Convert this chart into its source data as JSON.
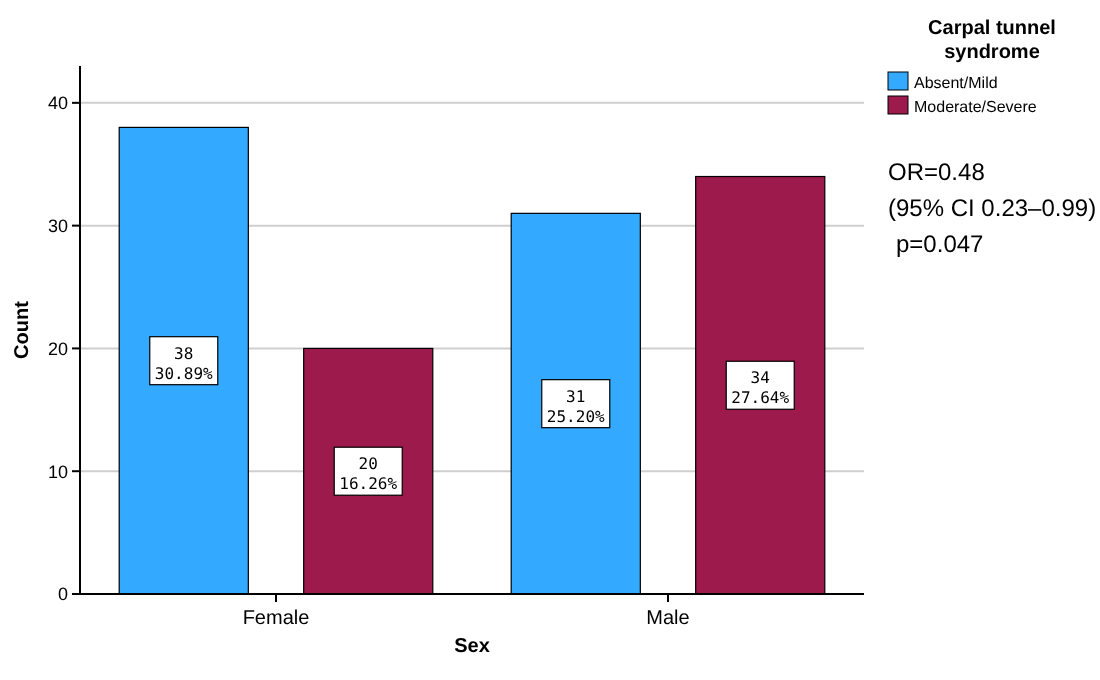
{
  "chart_data": {
    "type": "bar",
    "xlabel": "Sex",
    "ylabel": "Count",
    "categories": [
      "Female",
      "Male"
    ],
    "series": [
      {
        "name": "Absent/Mild",
        "color": "#33aaff",
        "values": [
          38,
          31
        ],
        "value_labels": [
          "38\n30.89%",
          "31\n25.20%"
        ]
      },
      {
        "name": "Moderate/Severe",
        "color": "#9c1a4c",
        "values": [
          20,
          34
        ],
        "value_labels": [
          "20\n16.26%",
          "34\n27.64%"
        ]
      }
    ],
    "ylim": [
      0,
      43
    ],
    "yticks": [
      0,
      10,
      20,
      30,
      40
    ],
    "grid": "y",
    "legend": "top right",
    "legend_title": "Carpal tunnel syndrome",
    "annotations": [
      "OR=0.48",
      "(95% CI 0.23–0.99)",
      "p=0.047"
    ]
  }
}
